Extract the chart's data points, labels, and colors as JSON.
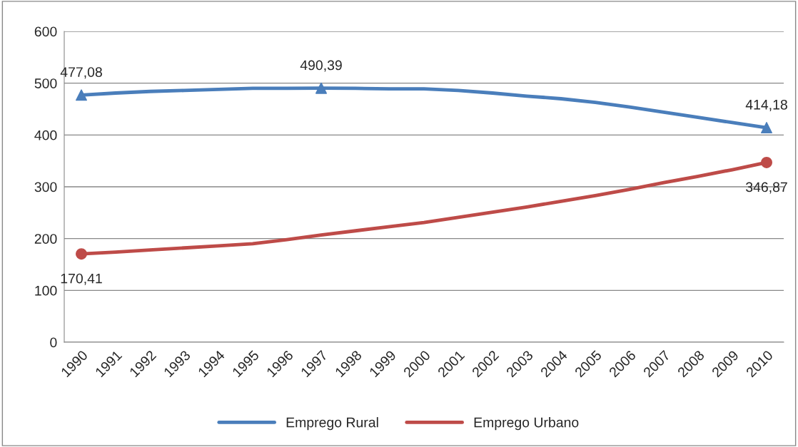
{
  "chart_data": {
    "type": "line",
    "categories": [
      "1990",
      "1991",
      "1992",
      "1993",
      "1994",
      "1995",
      "1996",
      "1997",
      "1998",
      "1999",
      "2000",
      "2001",
      "2002",
      "2003",
      "2004",
      "2005",
      "2006",
      "2007",
      "2008",
      "2009",
      "2010"
    ],
    "series": [
      {
        "name": "Emprego Rural",
        "color": "#4a7ebb",
        "values": [
          477.08,
          481,
          484,
          486,
          488,
          490,
          490,
          490.39,
          490,
          489,
          489,
          486,
          481,
          475,
          470,
          463,
          454,
          444,
          434,
          424,
          414.18
        ]
      },
      {
        "name": "Emprego Urbano",
        "color": "#be4b48",
        "values": [
          170.41,
          174,
          178,
          182,
          186,
          190,
          198,
          207,
          215,
          223,
          231,
          241,
          251,
          261,
          272,
          283,
          295,
          308,
          320,
          333,
          346.87
        ]
      },
      {
        "type": "scatter",
        "color": "#4a7ebb",
        "marker": "triangle",
        "values": [
          477.08,
          null,
          null,
          null,
          null,
          null,
          null,
          490.39,
          null,
          null,
          null,
          null,
          null,
          null,
          null,
          null,
          null,
          null,
          null,
          null,
          414.18
        ],
        "value_labels": [
          "477,08",
          null,
          null,
          null,
          null,
          null,
          null,
          "490,39",
          null,
          null,
          null,
          null,
          null,
          null,
          null,
          null,
          null,
          null,
          null,
          null,
          "414,18"
        ]
      },
      {
        "type": "scatter",
        "color": "#be4b48",
        "marker": "circle",
        "values": [
          170.41,
          null,
          null,
          null,
          null,
          null,
          null,
          null,
          null,
          null,
          null,
          null,
          null,
          null,
          null,
          null,
          null,
          null,
          null,
          null,
          346.87
        ],
        "value_labels": [
          "170,41",
          null,
          null,
          null,
          null,
          null,
          null,
          null,
          null,
          null,
          null,
          null,
          null,
          null,
          null,
          null,
          null,
          null,
          null,
          null,
          "346,87"
        ]
      }
    ],
    "ylim": [
      0,
      600
    ],
    "yticks": [
      0,
      100,
      200,
      300,
      400,
      500,
      600
    ],
    "grid": "y",
    "legend": "bottom"
  }
}
